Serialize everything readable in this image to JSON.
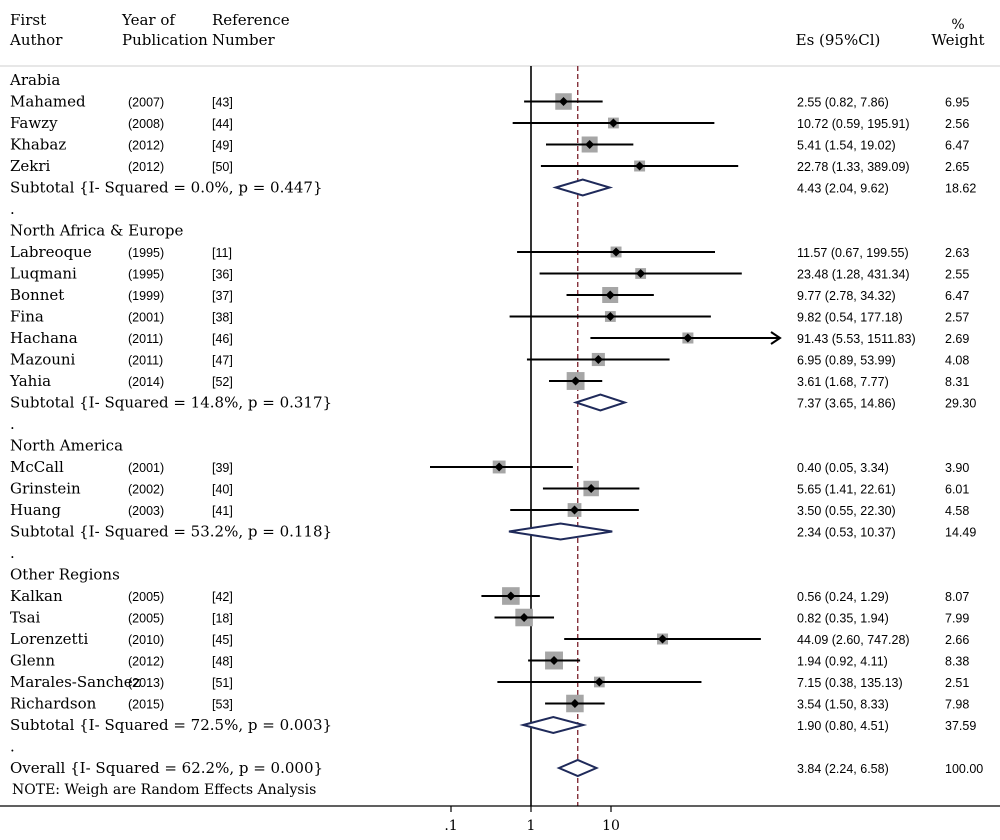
{
  "headers": {
    "first_author": [
      "First",
      "Author"
    ],
    "year": [
      "Year of",
      "Publication"
    ],
    "reference": [
      "Reference",
      "Number"
    ],
    "es": "Es (95%Cl)",
    "weight": [
      "%",
      "Weight"
    ]
  },
  "rows": [
    {
      "kind": "group",
      "label": "Arabia"
    },
    {
      "kind": "study",
      "author": "Mahamed",
      "year": "(2007)",
      "ref": "[43]",
      "es": 2.55,
      "lo": 0.82,
      "hi": 7.86,
      "ci_text": "2.55 (0.82, 7.86)",
      "weight": "6.95"
    },
    {
      "kind": "study",
      "author": "Fawzy",
      "year": "(2008)",
      "ref": "[44]",
      "es": 10.72,
      "lo": 0.59,
      "hi": 195.91,
      "ci_text": "10.72 (0.59, 195.91)",
      "weight": "2.56"
    },
    {
      "kind": "study",
      "author": "Khabaz",
      "year": "(2012)",
      "ref": "[49]",
      "es": 5.41,
      "lo": 1.54,
      "hi": 19.02,
      "ci_text": "5.41 (1.54, 19.02)",
      "weight": "6.47"
    },
    {
      "kind": "study",
      "author": "Zekri",
      "year": "(2012)",
      "ref": "[50]",
      "es": 22.78,
      "lo": 1.33,
      "hi": 389.09,
      "ci_text": "22.78 (1.33, 389.09)",
      "weight": "2.65"
    },
    {
      "kind": "subtotal",
      "label": "Subtotal {I- Squared = 0.0%, p = 0.447}",
      "es": 4.43,
      "lo": 2.04,
      "hi": 9.62,
      "ci_text": "4.43 (2.04, 9.62)",
      "weight": "18.62"
    },
    {
      "kind": "dot",
      "label": "."
    },
    {
      "kind": "group",
      "label": "North Africa & Europe"
    },
    {
      "kind": "study",
      "author": "Labreoque",
      "year": "(1995)",
      "ref": "[11]",
      "es": 11.57,
      "lo": 0.67,
      "hi": 199.55,
      "ci_text": "11.57 (0.67, 199.55)",
      "weight": "2.63"
    },
    {
      "kind": "study",
      "author": "Luqmani",
      "year": "(1995)",
      "ref": "[36]",
      "es": 23.48,
      "lo": 1.28,
      "hi": 431.34,
      "ci_text": "23.48 (1.28, 431.34)",
      "weight": "2.55"
    },
    {
      "kind": "study",
      "author": "Bonnet",
      "year": "(1999)",
      "ref": "[37]",
      "es": 9.77,
      "lo": 2.78,
      "hi": 34.32,
      "ci_text": "9.77 (2.78, 34.32)",
      "weight": "6.47"
    },
    {
      "kind": "study",
      "author": "Fina",
      "year": "(2001)",
      "ref": "[38]",
      "es": 9.82,
      "lo": 0.54,
      "hi": 177.18,
      "ci_text": "9.82 (0.54, 177.18)",
      "weight": "2.57"
    },
    {
      "kind": "study",
      "author": "Hachana",
      "year": "(2011)",
      "ref": "[46]",
      "es": 91.43,
      "lo": 5.53,
      "hi": 1511.83,
      "ci_text": "91.43 (5.53, 1511.83)",
      "weight": "2.69",
      "arrow": true
    },
    {
      "kind": "study",
      "author": "Mazouni",
      "year": "(2011)",
      "ref": "[47]",
      "es": 6.95,
      "lo": 0.89,
      "hi": 53.99,
      "ci_text": "6.95 (0.89, 53.99)",
      "weight": "4.08"
    },
    {
      "kind": "study",
      "author": "Yahia",
      "year": "(2014)",
      "ref": "[52]",
      "es": 3.61,
      "lo": 1.68,
      "hi": 7.77,
      "ci_text": "3.61 (1.68, 7.77)",
      "weight": "8.31"
    },
    {
      "kind": "subtotal",
      "label": "Subtotal {I- Squared = 14.8%, p = 0.317}",
      "es": 7.37,
      "lo": 3.65,
      "hi": 14.86,
      "ci_text": "7.37 (3.65, 14.86)",
      "weight": "29.30"
    },
    {
      "kind": "dot",
      "label": "."
    },
    {
      "kind": "group",
      "label": "North America"
    },
    {
      "kind": "study",
      "author": "McCall",
      "year": "(2001)",
      "ref": "[39]",
      "es": 0.4,
      "lo": 0.05,
      "hi": 3.34,
      "ci_text": "0.40 (0.05, 3.34)",
      "weight": "3.90"
    },
    {
      "kind": "study",
      "author": "Grinstein",
      "year": "(2002)",
      "ref": "[40]",
      "es": 5.65,
      "lo": 1.41,
      "hi": 22.61,
      "ci_text": "5.65 (1.41, 22.61)",
      "weight": "6.01"
    },
    {
      "kind": "study",
      "author": "Huang",
      "year": "(2003)",
      "ref": "[41]",
      "es": 3.5,
      "lo": 0.55,
      "hi": 22.3,
      "ci_text": "3.50 (0.55, 22.30)",
      "weight": "4.58"
    },
    {
      "kind": "subtotal",
      "label": "Subtotal {I- Squared = 53.2%, p = 0.118}",
      "es": 2.34,
      "lo": 0.53,
      "hi": 10.37,
      "ci_text": "2.34 (0.53, 10.37)",
      "weight": "14.49"
    },
    {
      "kind": "dot",
      "label": "."
    },
    {
      "kind": "group",
      "label": "Other Regions"
    },
    {
      "kind": "study",
      "author": "Kalkan",
      "year": "(2005)",
      "ref": "[42]",
      "es": 0.56,
      "lo": 0.24,
      "hi": 1.29,
      "ci_text": "0.56 (0.24, 1.29)",
      "weight": "8.07"
    },
    {
      "kind": "study",
      "author": "Tsai",
      "year": "(2005)",
      "ref": "[18]",
      "es": 0.82,
      "lo": 0.35,
      "hi": 1.94,
      "ci_text": "0.82 (0.35, 1.94)",
      "weight": "7.99"
    },
    {
      "kind": "study",
      "author": "Lorenzetti",
      "year": "(2010)",
      "ref": "[45]",
      "es": 44.09,
      "lo": 2.6,
      "hi": 747.28,
      "ci_text": "44.09 (2.60, 747.28)",
      "weight": "2.66"
    },
    {
      "kind": "study",
      "author": "Glenn",
      "year": "(2012)",
      "ref": "[48]",
      "es": 1.94,
      "lo": 0.92,
      "hi": 4.11,
      "ci_text": "1.94 (0.92, 4.11)",
      "weight": "8.38"
    },
    {
      "kind": "study",
      "author": "Marales-Sanchez",
      "year": "(2013)",
      "ref": "[51]",
      "es": 7.15,
      "lo": 0.38,
      "hi": 135.13,
      "ci_text": "7.15 (0.38, 135.13)",
      "weight": "2.51"
    },
    {
      "kind": "study",
      "author": "Richardson",
      "year": "(2015)",
      "ref": "[53]",
      "es": 3.54,
      "lo": 1.5,
      "hi": 8.33,
      "ci_text": "3.54 (1.50, 8.33)",
      "weight": "7.98"
    },
    {
      "kind": "subtotal",
      "label": "Subtotal {I- Squared = 72.5%, p = 0.003}",
      "es": 1.9,
      "lo": 0.8,
      "hi": 4.51,
      "ci_text": "1.90 (0.80, 4.51)",
      "weight": "37.59"
    },
    {
      "kind": "dot",
      "label": "."
    },
    {
      "kind": "subtotal",
      "label": "Overall {I- Squared = 62.2%, p = 0.000}",
      "es": 3.84,
      "lo": 2.24,
      "hi": 6.58,
      "ci_text": "3.84 (2.24, 6.58)",
      "weight": "100.00"
    }
  ],
  "note": "NOTE: Weigh are Random Effects Analysis",
  "chart_data": {
    "type": "forest",
    "scale": "log",
    "null_value": 1,
    "overall_effect": 3.84,
    "ticks": [
      {
        "value": 0.1,
        "label": ".1"
      },
      {
        "value": 1,
        "label": "1"
      },
      {
        "value": 10,
        "label": "10"
      }
    ],
    "colors": {
      "ci_line": "#000000",
      "marker": "#000000",
      "weight_box": "#a6a6a6",
      "diamond": "#1f2a5a",
      "overall_line": "#7a1f2b"
    }
  }
}
